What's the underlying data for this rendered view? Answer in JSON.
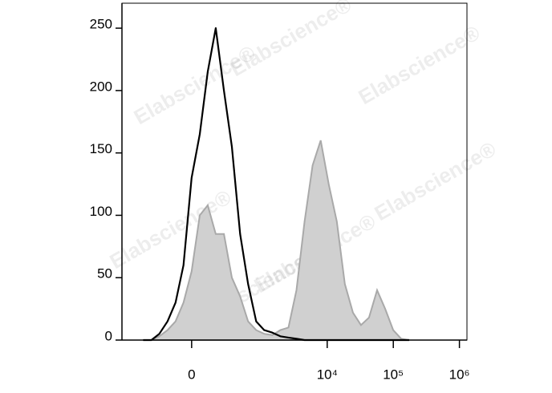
{
  "chart_data": {
    "type": "histogram-overlay",
    "watermark": "Elabscience®",
    "xscale": "asinh",
    "x": [
      -465,
      -340,
      -245,
      -168,
      -105,
      -51,
      0,
      51,
      105,
      168,
      245,
      340,
      465,
      623,
      833,
      1107,
      1472,
      1953,
      2588,
      3430,
      4540,
      6016,
      7960,
      10550,
      13970,
      18500,
      24500,
      32400,
      42900,
      56900,
      75300,
      99700,
      131700,
      174000
    ],
    "series": [
      {
        "color": "#000000",
        "fill": false,
        "values": [
          0,
          0,
          5,
          15,
          30,
          60,
          130,
          165,
          215,
          250,
          200,
          155,
          85,
          45,
          15,
          8,
          6,
          3,
          2,
          1,
          0,
          0,
          0,
          0,
          0,
          0,
          0,
          0,
          0,
          0,
          0,
          0,
          0,
          0
        ]
      },
      {
        "color": "#a9a9a9",
        "fill": true,
        "values": [
          0,
          0,
          3,
          8,
          15,
          30,
          55,
          100,
          108,
          85,
          85,
          50,
          35,
          15,
          8,
          5,
          4,
          8,
          10,
          40,
          95,
          140,
          160,
          125,
          95,
          45,
          22,
          12,
          18,
          40,
          25,
          8,
          1,
          0
        ]
      }
    ],
    "xlim": [
      -1000,
      1300000
    ],
    "xticks": [
      0,
      {
        "value": 10000,
        "label": "10⁴"
      },
      {
        "value": 100000,
        "label": "10⁵"
      },
      {
        "value": 1000000,
        "label": "10⁶"
      }
    ],
    "ylim": [
      0,
      270
    ],
    "yticks": [
      0,
      50,
      100,
      150,
      200,
      250
    ]
  }
}
